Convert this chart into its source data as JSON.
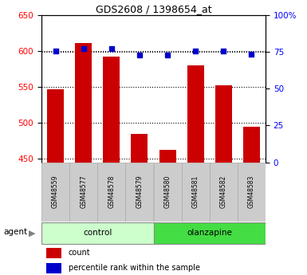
{
  "title": "GDS2608 / 1398654_at",
  "samples": [
    "GSM48559",
    "GSM48577",
    "GSM48578",
    "GSM48579",
    "GSM48580",
    "GSM48581",
    "GSM48582",
    "GSM48583"
  ],
  "counts": [
    547,
    611,
    592,
    485,
    462,
    580,
    552,
    494
  ],
  "percentile_ranks": [
    75.5,
    77.0,
    77.5,
    73.0,
    73.0,
    75.5,
    75.5,
    73.5
  ],
  "bar_color": "#cc0000",
  "dot_color": "#0000cc",
  "control_color_light": "#ccffcc",
  "olanzapine_color_dark": "#44dd44",
  "sample_bg": "#cccccc",
  "ylim_left": [
    445,
    650
  ],
  "ylim_right": [
    0,
    100
  ],
  "yticks_left": [
    450,
    500,
    550,
    600,
    650
  ],
  "yticks_right": [
    0,
    25,
    50,
    75,
    100
  ],
  "group_label": "agent",
  "legend_count": "count",
  "legend_percentile": "percentile rank within the sample",
  "n_control": 4,
  "n_olanzapine": 4
}
